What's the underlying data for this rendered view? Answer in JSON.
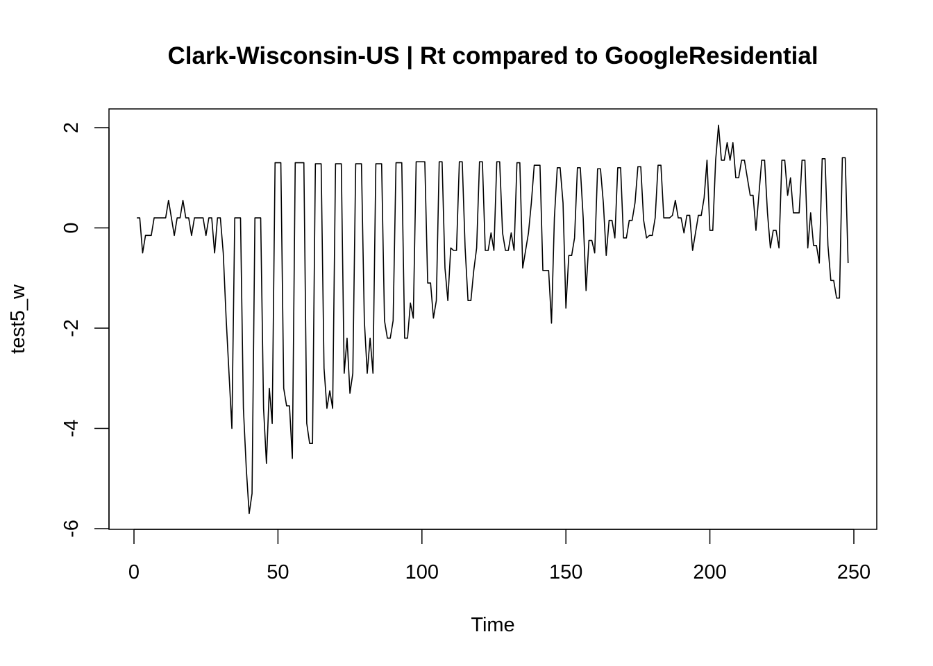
{
  "chart_data": {
    "type": "line",
    "title": "Clark-Wisconsin-US | Rt compared to GoogleResidential",
    "xlabel": "Time",
    "ylabel": "test5_w",
    "xlim": [
      0,
      250
    ],
    "ylim": [
      -6,
      2
    ],
    "x_ticks": [
      "0",
      "50",
      "100",
      "150",
      "200",
      "250"
    ],
    "y_ticks": [
      "-6",
      "-4",
      "-2",
      "0",
      "2"
    ],
    "grid": false,
    "legend": "none",
    "line_color": "#000000",
    "series": [
      {
        "x": [
          1,
          2,
          3,
          4,
          5,
          6,
          7,
          8,
          9,
          10,
          11,
          12,
          13,
          14,
          15,
          16,
          17,
          18,
          19,
          20,
          21,
          22,
          23,
          24,
          25,
          26,
          27,
          28,
          29,
          30,
          31,
          32,
          33,
          34,
          35,
          36,
          37,
          38,
          39,
          40,
          41,
          42,
          43,
          44,
          45,
          46,
          47,
          48,
          49,
          50,
          51,
          52,
          53,
          54,
          55,
          56,
          57,
          58,
          59,
          60,
          61,
          62,
          63,
          64,
          65,
          66,
          67,
          68,
          69,
          70,
          71,
          72,
          73,
          74,
          75,
          76,
          77,
          78,
          79,
          80,
          81,
          82,
          83,
          84,
          85,
          86,
          87,
          88,
          89,
          90,
          91,
          92,
          93,
          94,
          95,
          96,
          97,
          98,
          99,
          100,
          101,
          102,
          103,
          104,
          105,
          106,
          107,
          108,
          109,
          110,
          111,
          112,
          113,
          114,
          115,
          116,
          117,
          118,
          119,
          120,
          121,
          122,
          123,
          124,
          125,
          126,
          127,
          128,
          129,
          130,
          131,
          132,
          133,
          134,
          135,
          136,
          137,
          138,
          139,
          140,
          141,
          142,
          143,
          144,
          145,
          146,
          147,
          148,
          149,
          150,
          151,
          152,
          153,
          154,
          155,
          156,
          157,
          158,
          159,
          160,
          161,
          162,
          163,
          164,
          165,
          166,
          167,
          168,
          169,
          170,
          171,
          172,
          173,
          174,
          175,
          176,
          177,
          178,
          179,
          180,
          181,
          182,
          183,
          184,
          185,
          186,
          187,
          188,
          189,
          190,
          191,
          192,
          193,
          194,
          195,
          196,
          197,
          198,
          199,
          200,
          201,
          202,
          203,
          204,
          205,
          206,
          207,
          208,
          209,
          210,
          211,
          212,
          213,
          214,
          215,
          216,
          217,
          218,
          219,
          220,
          221,
          222,
          223,
          224,
          225,
          226,
          227,
          228,
          229,
          230,
          231,
          232,
          233,
          234,
          235,
          236,
          237,
          238,
          239,
          240,
          241,
          242,
          243,
          244,
          245,
          246,
          247,
          248
        ],
        "y": [
          0.2,
          0.2,
          -0.5,
          -0.15,
          -0.15,
          -0.15,
          0.2,
          0.2,
          0.2,
          0.2,
          0.2,
          0.55,
          0.2,
          -0.15,
          0.2,
          0.2,
          0.55,
          0.2,
          0.2,
          -0.15,
          0.2,
          0.2,
          0.2,
          0.2,
          -0.15,
          0.2,
          0.2,
          -0.5,
          0.2,
          0.2,
          -0.5,
          -1.8,
          -2.9,
          -4.0,
          0.2,
          0.2,
          0.2,
          -3.6,
          -4.8,
          -5.7,
          -5.3,
          0.2,
          0.2,
          0.2,
          -3.6,
          -4.7,
          -3.2,
          -3.9,
          1.3,
          1.3,
          1.3,
          -3.2,
          -3.55,
          -3.55,
          -4.6,
          1.3,
          1.3,
          1.3,
          1.3,
          -3.9,
          -4.3,
          -4.3,
          1.28,
          1.28,
          1.28,
          -2.8,
          -3.6,
          -3.25,
          -3.6,
          1.28,
          1.28,
          1.28,
          -2.9,
          -2.2,
          -3.3,
          -2.9,
          1.28,
          1.28,
          1.28,
          -1.85,
          -2.9,
          -2.2,
          -2.9,
          1.28,
          1.28,
          1.28,
          -1.85,
          -2.2,
          -2.2,
          -1.85,
          1.3,
          1.3,
          1.3,
          -2.2,
          -2.2,
          -1.5,
          -1.8,
          1.32,
          1.32,
          1.32,
          1.32,
          -1.1,
          -1.1,
          -1.8,
          -1.45,
          1.32,
          1.32,
          -0.8,
          -1.45,
          -0.4,
          -0.45,
          -0.45,
          1.32,
          1.32,
          -0.4,
          -1.45,
          -1.45,
          -0.85,
          -0.4,
          1.32,
          1.32,
          -0.45,
          -0.45,
          -0.1,
          -0.45,
          1.32,
          1.32,
          -0.1,
          -0.45,
          -0.45,
          -0.1,
          -0.45,
          1.3,
          1.3,
          -0.8,
          -0.45,
          -0.1,
          0.5,
          1.25,
          1.25,
          1.25,
          -0.85,
          -0.85,
          -0.85,
          -1.9,
          0.2,
          1.2,
          1.2,
          0.5,
          -1.6,
          -0.55,
          -0.55,
          -0.2,
          1.2,
          1.2,
          0.2,
          -1.25,
          -0.25,
          -0.25,
          -0.5,
          1.18,
          1.18,
          0.5,
          -0.55,
          0.15,
          0.15,
          -0.2,
          1.2,
          1.2,
          -0.2,
          -0.2,
          0.15,
          0.15,
          0.5,
          1.22,
          1.22,
          0.15,
          -0.2,
          -0.15,
          -0.15,
          0.2,
          1.25,
          1.25,
          0.2,
          0.2,
          0.2,
          0.25,
          0.55,
          0.2,
          0.2,
          -0.1,
          0.25,
          0.25,
          -0.45,
          -0.1,
          0.25,
          0.25,
          0.6,
          1.35,
          -0.05,
          -0.05,
          1.35,
          2.05,
          1.35,
          1.35,
          1.7,
          1.35,
          1.7,
          1.0,
          1.0,
          1.35,
          1.35,
          1.0,
          0.65,
          0.65,
          -0.05,
          0.65,
          1.35,
          1.35,
          0.3,
          -0.4,
          -0.05,
          -0.05,
          -0.4,
          1.35,
          1.35,
          0.65,
          1.0,
          0.3,
          0.3,
          0.3,
          1.35,
          1.35,
          -0.4,
          0.3,
          -0.35,
          -0.35,
          -0.7,
          1.38,
          1.38,
          -0.35,
          -1.05,
          -1.05,
          -1.4,
          -1.4,
          1.4,
          1.4,
          -0.7
        ]
      }
    ]
  }
}
